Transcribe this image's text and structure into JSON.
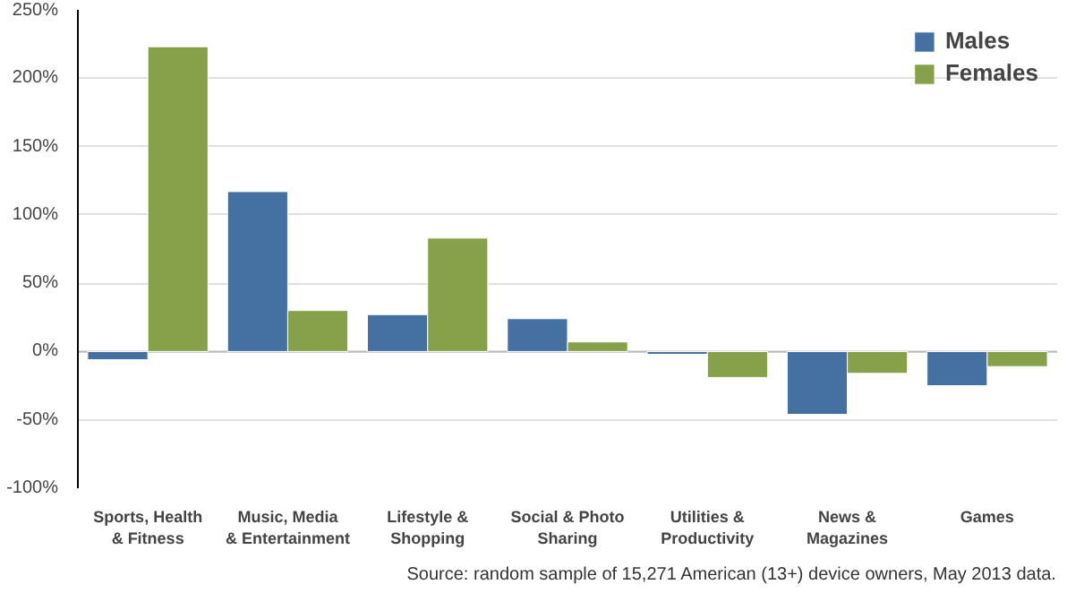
{
  "chart_data": {
    "type": "bar",
    "categories": [
      "Sports, Health\n& Fitness",
      "Music, Media\n& Entertainment",
      "Lifestyle &\nShopping",
      "Social & Photo\nSharing",
      "Utilities &\nProductivity",
      "News &\nMagazines",
      "Games"
    ],
    "series": [
      {
        "name": "Males",
        "color": "#4571a2",
        "values": [
          -6,
          117,
          27,
          24,
          -2,
          -46,
          -25
        ]
      },
      {
        "name": "Females",
        "color": "#87a04a",
        "values": [
          223,
          30,
          83,
          7,
          -19,
          -16,
          -11
        ]
      }
    ],
    "ylim": [
      -100,
      250
    ],
    "yticks": [
      {
        "value": -100,
        "label": "-100%"
      },
      {
        "value": -50,
        "label": "-50%"
      },
      {
        "value": 0,
        "label": "0%"
      },
      {
        "value": 50,
        "label": "50%"
      },
      {
        "value": 100,
        "label": "100%"
      },
      {
        "value": 150,
        "label": "150%"
      },
      {
        "value": 200,
        "label": "200%"
      },
      {
        "value": 250,
        "label": "250%"
      }
    ],
    "grid": "y",
    "legend": "top right",
    "annotations": [
      "Source: random sample of 15,271 American (13+) device owners, May 2013 data."
    ]
  }
}
